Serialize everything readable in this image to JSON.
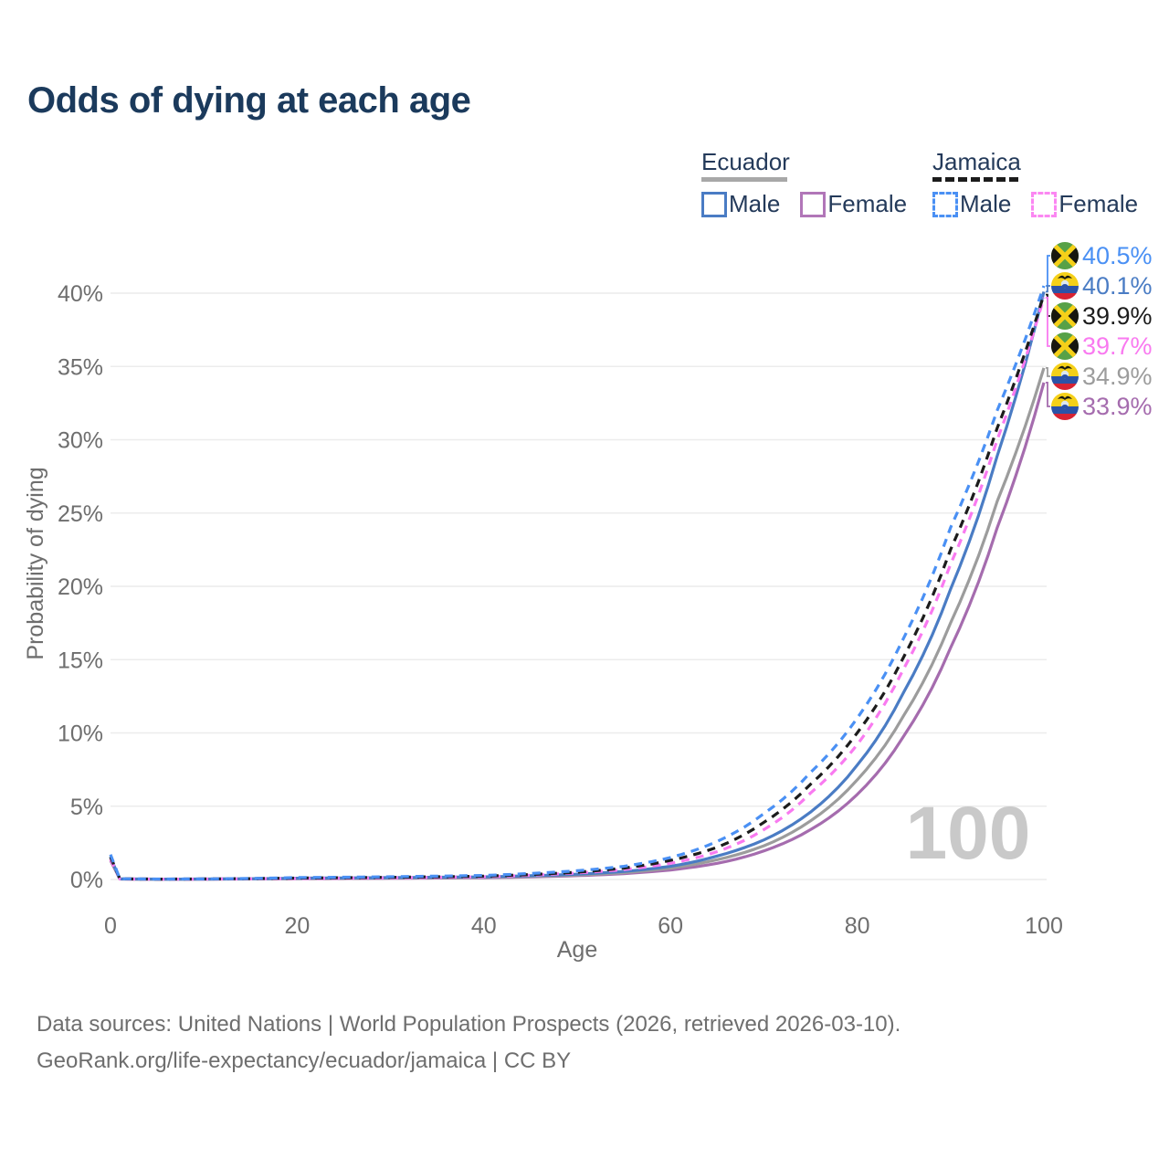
{
  "title": "Odds of dying at each age",
  "watermark": "100",
  "legend": {
    "groups": [
      {
        "country": "Ecuador",
        "line_style": "solid",
        "underline_color": "#a8a8a8",
        "items": [
          {
            "label": "Male",
            "color": "#4a7cc4",
            "style": "solid"
          },
          {
            "label": "Female",
            "color": "#b176b8",
            "style": "solid"
          }
        ]
      },
      {
        "country": "Jamaica",
        "line_style": "dashed",
        "underline_color": "#1c1c1c",
        "items": [
          {
            "label": "Male",
            "color": "#4a90f4",
            "style": "dashed"
          },
          {
            "label": "Female",
            "color": "#fb87f2",
            "style": "dashed"
          }
        ]
      }
    ]
  },
  "chart_data": {
    "type": "line",
    "title": "Odds of dying at each age",
    "xlabel": "Age",
    "ylabel": "Probability of dying",
    "xlim": [
      0,
      100
    ],
    "ylim": [
      0,
      42
    ],
    "x_ticks": [
      0,
      20,
      40,
      60,
      80,
      100
    ],
    "y_ticks_pct": [
      0,
      5,
      10,
      15,
      20,
      25,
      30,
      35,
      40
    ],
    "y_tick_labels": [
      "0%",
      "5%",
      "10%",
      "15%",
      "20%",
      "25%",
      "30%",
      "35%",
      "40%"
    ],
    "grid": "horizontal-only",
    "legend_position": "top-right",
    "ages": [
      0,
      1,
      5,
      10,
      20,
      30,
      40,
      50,
      55,
      60,
      65,
      70,
      75,
      80,
      85,
      90,
      95,
      100
    ],
    "series": [
      {
        "name": "Ecuador Female",
        "country": "ecuador",
        "sex": "female",
        "line": "solid",
        "color": "#a56cae",
        "end_label": "33.9%",
        "end_value": 33.9,
        "values_pct": [
          1.3,
          0.03,
          0.018,
          0.025,
          0.05,
          0.08,
          0.12,
          0.26,
          0.4,
          0.65,
          1.1,
          1.95,
          3.4,
          5.8,
          9.8,
          15.8,
          24.0,
          33.9
        ]
      },
      {
        "name": "Ecuador",
        "country": "ecuador",
        "sex": "both",
        "line": "solid",
        "color": "#9c9c9c",
        "end_label": "34.9%",
        "end_value": 34.9,
        "values_pct": [
          1.4,
          0.035,
          0.02,
          0.028,
          0.07,
          0.1,
          0.15,
          0.31,
          0.47,
          0.78,
          1.35,
          2.3,
          4.0,
          6.8,
          11.2,
          17.5,
          25.8,
          34.9
        ]
      },
      {
        "name": "Ecuador Male",
        "country": "ecuador",
        "sex": "male",
        "line": "solid",
        "color": "#4a7cc4",
        "end_label": "40.1%",
        "end_value": 40.1,
        "values_pct": [
          1.5,
          0.04,
          0.025,
          0.03,
          0.09,
          0.13,
          0.18,
          0.36,
          0.55,
          0.9,
          1.6,
          2.7,
          4.6,
          7.8,
          12.8,
          19.8,
          28.9,
          40.1
        ]
      },
      {
        "name": "Jamaica Female",
        "country": "jamaica",
        "sex": "female",
        "line": "dashed",
        "color": "#f97af0",
        "end_label": "39.7%",
        "end_value": 39.7,
        "values_pct": [
          1.4,
          0.04,
          0.02,
          0.03,
          0.07,
          0.11,
          0.19,
          0.45,
          0.68,
          1.1,
          1.9,
          3.4,
          5.9,
          9.2,
          14.4,
          21.5,
          30.0,
          39.7
        ]
      },
      {
        "name": "Jamaica",
        "country": "jamaica",
        "sex": "both",
        "line": "dashed",
        "color": "#1c1c1c",
        "end_label": "39.9%",
        "end_value": 39.9,
        "values_pct": [
          1.55,
          0.045,
          0.025,
          0.035,
          0.1,
          0.15,
          0.23,
          0.5,
          0.78,
          1.3,
          2.2,
          3.9,
          6.5,
          10.0,
          15.2,
          22.5,
          30.8,
          39.9
        ]
      },
      {
        "name": "Jamaica Male",
        "country": "jamaica",
        "sex": "male",
        "line": "dashed",
        "color": "#4a90f4",
        "end_label": "40.5%",
        "end_value": 40.5,
        "values_pct": [
          1.7,
          0.05,
          0.03,
          0.04,
          0.13,
          0.19,
          0.28,
          0.6,
          0.9,
          1.5,
          2.6,
          4.5,
          7.3,
          11.0,
          16.5,
          24.0,
          32.0,
          40.5
        ]
      }
    ],
    "annotations": [
      {
        "text": "100",
        "role": "hovered-age-watermark"
      }
    ]
  },
  "footer": {
    "line1": "Data sources: United Nations | World Population Prospects (2026, retrieved 2026-03-10).",
    "line2": "GeoRank.org/life-expectancy/ecuador/jamaica | CC BY"
  },
  "colors": {
    "title": "#1b3a5c",
    "legend_text": "#243a5a",
    "axis_text": "#6e6e6e",
    "gridline": "#ececec",
    "watermark": "#c9c9c9"
  }
}
